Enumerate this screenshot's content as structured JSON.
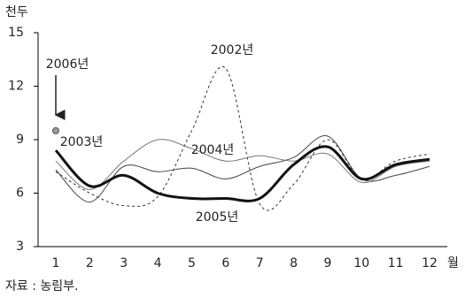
{
  "chart_data": {
    "type": "line",
    "y_label": "천두",
    "x_label": "월",
    "source": "자료 : 농림부.",
    "categories": [
      "1",
      "2",
      "3",
      "4",
      "5",
      "6",
      "7",
      "8",
      "9",
      "10",
      "11",
      "12"
    ],
    "series": [
      {
        "name": "2002년",
        "color": "#333333",
        "values": [
          7.2,
          6.0,
          5.3,
          5.8,
          9.5,
          13.0,
          5.4,
          6.5,
          9.0,
          6.8,
          7.8,
          8.2
        ]
      },
      {
        "name": "2003년",
        "color": "#444444",
        "values": [
          7.3,
          5.5,
          7.5,
          7.2,
          7.4,
          6.8,
          7.5,
          8.0,
          9.2,
          6.8,
          7.0,
          7.5
        ]
      },
      {
        "name": "2004년",
        "color": "#777777",
        "values": [
          7.8,
          6.2,
          7.8,
          9.0,
          8.5,
          7.8,
          8.1,
          7.8,
          8.2,
          6.6,
          7.5,
          7.8
        ]
      },
      {
        "name": "2005년",
        "color": "#111111",
        "values": [
          8.4,
          6.4,
          7.0,
          6.0,
          5.7,
          5.7,
          5.7,
          7.6,
          8.6,
          6.8,
          7.6,
          7.9
        ]
      },
      {
        "name": "2006년",
        "color": "#555555",
        "values": [
          9.5,
          null,
          null,
          null,
          null,
          null,
          null,
          null,
          null,
          null,
          null,
          null
        ]
      }
    ],
    "ylim": [
      3,
      15
    ],
    "yticks": [
      3,
      6,
      9,
      12,
      15
    ],
    "grid": false
  }
}
